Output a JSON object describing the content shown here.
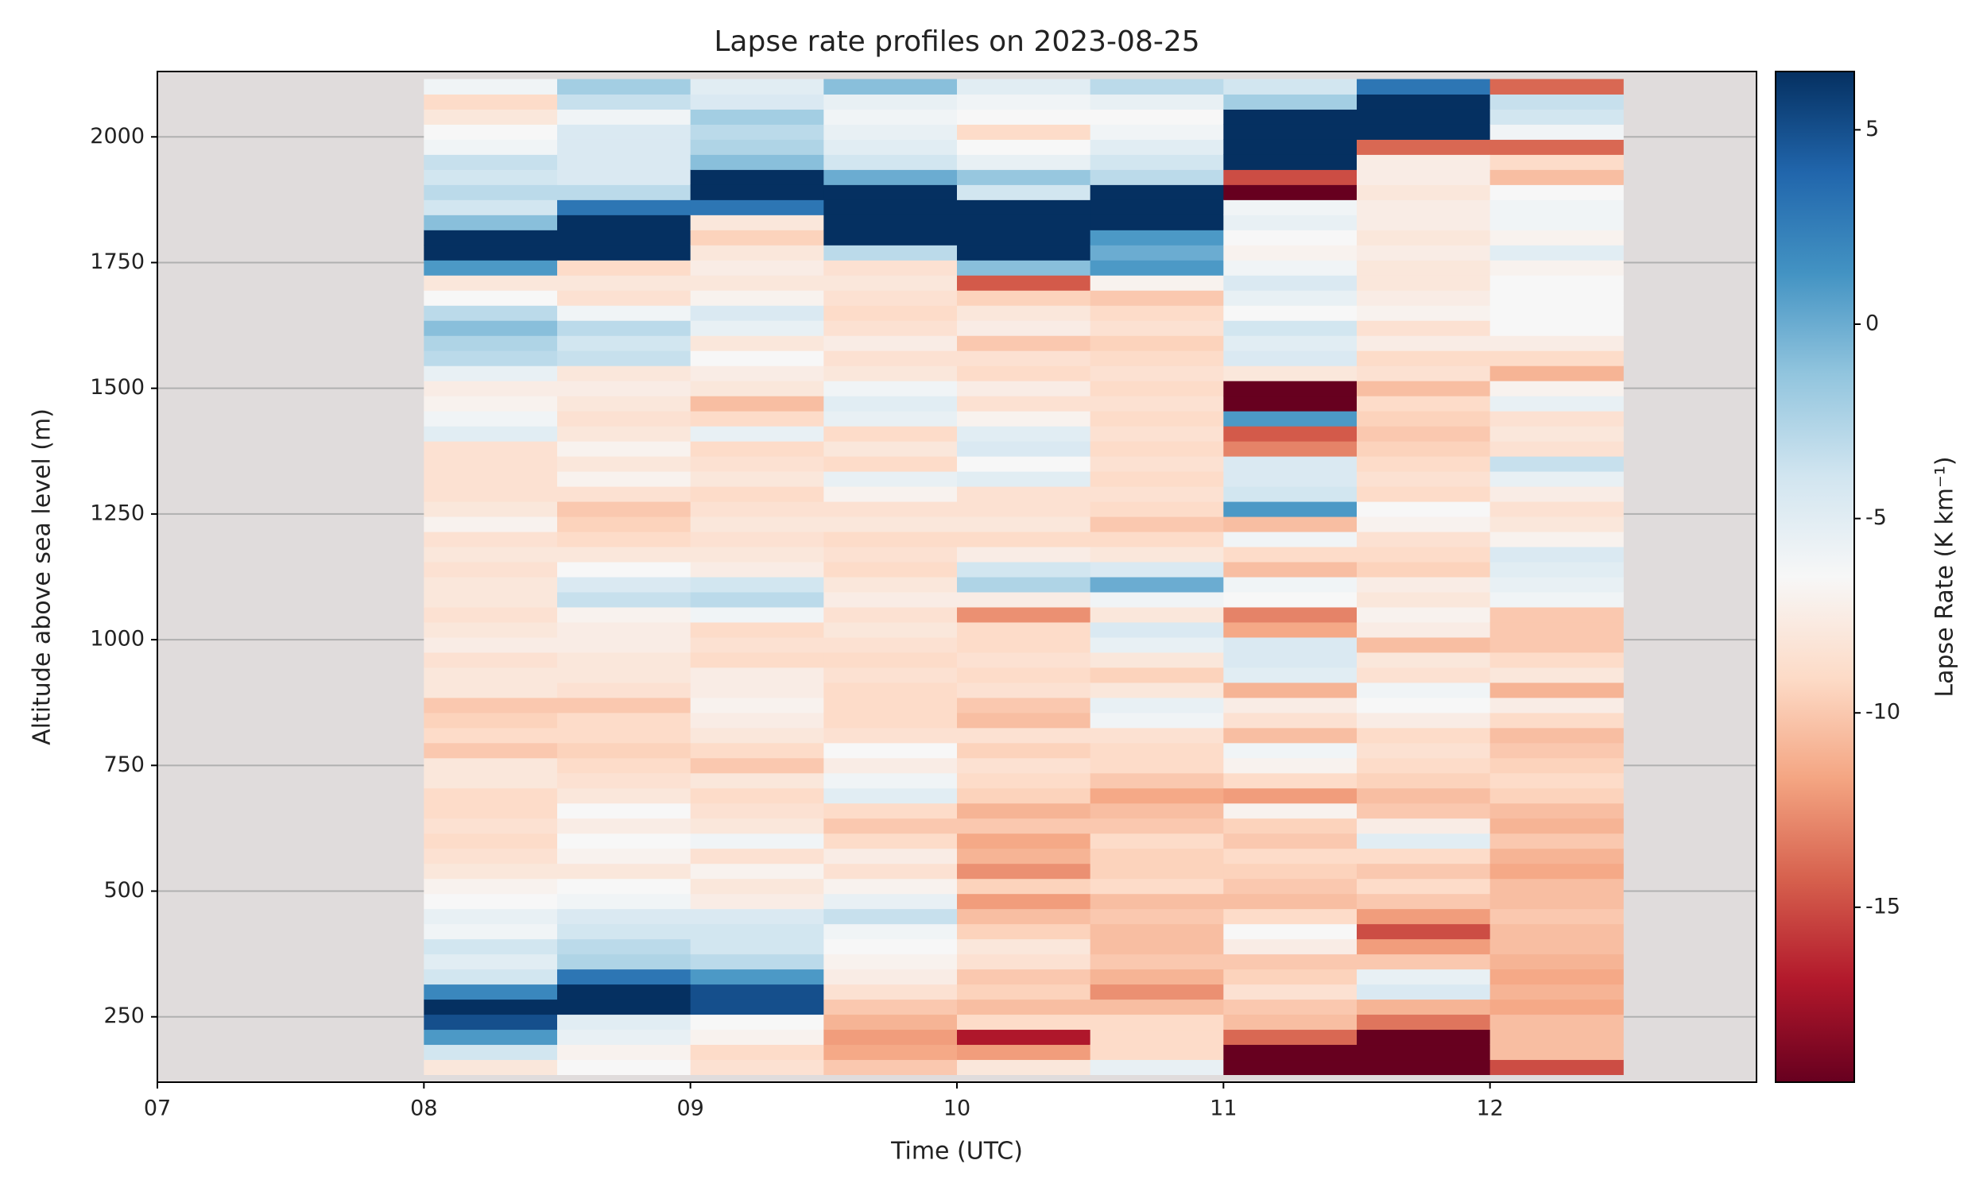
{
  "chart_data": {
    "type": "heatmap",
    "title": "Lapse rate profiles on 2023-08-25",
    "xlabel": "Time (UTC)",
    "ylabel": "Altitude above sea level (m)",
    "colorbar_label": "Lapse Rate (K km⁻¹)",
    "xlim": [
      7,
      13
    ],
    "xticks": [
      {
        "value": 7,
        "label": "07"
      },
      {
        "value": 8,
        "label": "08"
      },
      {
        "value": 9,
        "label": "09"
      },
      {
        "value": 10,
        "label": "10"
      },
      {
        "value": 11,
        "label": "11"
      },
      {
        "value": 12,
        "label": "12"
      }
    ],
    "ylim": [
      120,
      2130
    ],
    "yticks": [
      250,
      500,
      750,
      1000,
      1250,
      1500,
      1750,
      2000
    ],
    "grid": true,
    "clim": [
      -19.5,
      6.5
    ],
    "cticks": [
      -15,
      -10,
      -5,
      0,
      5
    ],
    "colormap": [
      "#67001f",
      "#b2182b",
      "#d6604d",
      "#f4a582",
      "#fddbc7",
      "#f7f7f7",
      "#d1e5f0",
      "#92c5de",
      "#4393c3",
      "#2166ac",
      "#053061"
    ],
    "background": "#e0dcdc",
    "x": [
      8,
      8.5,
      9,
      9.5,
      10,
      10.5,
      11,
      11.5,
      12
    ],
    "y": [
      150,
      180,
      210,
      240,
      270,
      300,
      330,
      360,
      390,
      420,
      450,
      480,
      510,
      540,
      570,
      600,
      630,
      660,
      690,
      720,
      750,
      780,
      810,
      840,
      870,
      900,
      930,
      960,
      990,
      1020,
      1050,
      1080,
      1110,
      1140,
      1170,
      1200,
      1230,
      1260,
      1290,
      1320,
      1350,
      1380,
      1410,
      1440,
      1470,
      1500,
      1530,
      1560,
      1590,
      1620,
      1650,
      1680,
      1710,
      1740,
      1770,
      1800,
      1830,
      1860,
      1890,
      1920,
      1950,
      1980,
      2010,
      2040,
      2070,
      2100
    ],
    "z": [
      [
        -8,
        -4,
        1,
        5,
        7,
        2,
        -4,
        -5,
        -4,
        -6,
        -5.5,
        -6.5,
        -7,
        -8,
        -8.5,
        -9,
        -8.5,
        -9,
        -9,
        -8,
        -8,
        -10,
        -9,
        -9.5,
        -10,
        -8,
        -8,
        -8.5,
        -7.5,
        -8,
        -8.5,
        -8,
        -8,
        -8.5,
        -8,
        -8.5,
        -7,
        -8,
        -8.5,
        -8.5,
        -8.5,
        -8.5,
        -5,
        -6,
        -7,
        -7.5,
        -5.5,
        -3,
        -2.5,
        -1,
        -3,
        -6.5,
        -8,
        1,
        7,
        7,
        -1,
        -4,
        -3,
        -4,
        -3.5,
        -6,
        -6.5,
        -8,
        -9,
        -6
      ],
      [
        -6.5,
        -7,
        -5.5,
        -5,
        7,
        7,
        3,
        -2.5,
        -3,
        -4,
        -4.5,
        -6,
        -6.5,
        -8,
        -7,
        -6.5,
        -7.5,
        -6.5,
        -8,
        -8.5,
        -9,
        -9.5,
        -9,
        -9,
        -10,
        -8.5,
        -8,
        -8,
        -7.5,
        -7.5,
        -7,
        -3.5,
        -4.5,
        -6.5,
        -8,
        -9,
        -9.5,
        -10,
        -8.5,
        -7,
        -8,
        -7,
        -8,
        -8.5,
        -8,
        -7.5,
        -8,
        -3.5,
        -4,
        -3,
        -6,
        -8.5,
        -8,
        -9,
        7,
        7,
        7,
        3,
        -3,
        -4.5,
        -4.5,
        -4.5,
        -4.5,
        -6,
        -3.5,
        -2
      ],
      [
        -8.5,
        -9,
        -7,
        -6.5,
        5,
        5,
        1,
        -3,
        -4,
        -4,
        -4.5,
        -7.5,
        -8,
        -7,
        -8.5,
        -6,
        -8,
        -8.5,
        -9,
        -8,
        -10,
        -9,
        -8,
        -7.5,
        -7,
        -7.5,
        -7.5,
        -9,
        -8.5,
        -9,
        -6,
        -3,
        -4,
        -7.5,
        -8,
        -8.5,
        -8,
        -8.5,
        -9,
        -8,
        -8.5,
        -9,
        -5.5,
        -9,
        -10.5,
        -8,
        -7.5,
        -6.5,
        -8,
        -5.5,
        -4.5,
        -7,
        -8,
        -7.5,
        -8,
        -9.5,
        -8,
        3,
        7,
        7,
        -1,
        -2.5,
        -3,
        -2,
        -4.5,
        -5
      ],
      [
        -10,
        -11.5,
        -12,
        -11,
        -10,
        -8.5,
        -7.5,
        -7,
        -6.5,
        -6,
        -3.5,
        -5.5,
        -7,
        -8.5,
        -7.5,
        -9,
        -10,
        -9,
        -5,
        -6,
        -7.5,
        -6.5,
        -8.5,
        -9,
        -9,
        -9,
        -8.5,
        -9,
        -8.5,
        -8,
        -8.5,
        -7.5,
        -8,
        -9,
        -8.5,
        -9,
        -8,
        -8.5,
        -7,
        -5.5,
        -9,
        -8,
        -9,
        -5.5,
        -5,
        -6,
        -8,
        -8.5,
        -7.5,
        -8.5,
        -9,
        -8.5,
        -8,
        -8.5,
        -3,
        7,
        7,
        7,
        7,
        0,
        -4,
        -5,
        -5.5,
        -6,
        -5.5,
        -1
      ],
      [
        -8,
        -12,
        -17,
        -9,
        -10.5,
        -9.5,
        -10,
        -8.5,
        -8,
        -9.5,
        -10.5,
        -12,
        -9.5,
        -12.5,
        -11,
        -11.5,
        -10,
        -11,
        -9.5,
        -9,
        -8.5,
        -9.5,
        -8.5,
        -10.5,
        -10,
        -8.5,
        -9,
        -8.5,
        -9,
        -9,
        -12.5,
        -7.5,
        -2.5,
        -4,
        -7.5,
        -9,
        -8,
        -8.5,
        -8.5,
        -5,
        -6.5,
        -4.5,
        -5,
        -7,
        -8.5,
        -7.5,
        -9,
        -8.5,
        -10,
        -7.5,
        -8,
        -9.5,
        -14.5,
        -1,
        7,
        7,
        7,
        7,
        -4,
        -1.5,
        -5.5,
        -6.5,
        -9,
        -6.5,
        -6,
        -5
      ],
      [
        -5.5,
        -9,
        -9,
        -9,
        -10.5,
        -12.5,
        -11,
        -10,
        -10.5,
        -10.5,
        -10,
        -10.5,
        -9,
        -9.5,
        -9.5,
        -9,
        -10,
        -10.5,
        -11.5,
        -10,
        -9,
        -9,
        -8.5,
        -6,
        -5.5,
        -8,
        -9.5,
        -8,
        -5.5,
        -4.5,
        -8,
        -6,
        0,
        -4.5,
        -8,
        -9,
        -10,
        -9,
        -8.5,
        -9,
        -8.5,
        -9,
        -8.5,
        -9,
        -8.5,
        -9,
        -8.5,
        -9,
        -9.5,
        -8.5,
        -9,
        -10,
        -7,
        1,
        0,
        1,
        7,
        7,
        7,
        -3,
        -4,
        -5,
        -6,
        -6.5,
        -5.5,
        -3
      ],
      [
        -19.5,
        -19.5,
        -14,
        -10.5,
        -10,
        -8.5,
        -9.5,
        -10,
        -7.5,
        -6.5,
        -9,
        -10.5,
        -10,
        -9.5,
        -9,
        -10,
        -9.5,
        -7,
        -12,
        -9,
        -7,
        -6,
        -10.5,
        -8.5,
        -7.5,
        -11,
        -5,
        -4.5,
        -4.5,
        -11.5,
        -13,
        -6.5,
        -6,
        -10.5,
        -9,
        -6,
        -10.5,
        1,
        -4,
        -4.5,
        -4.5,
        -13,
        -14.5,
        1,
        -19.5,
        -19.5,
        -8,
        -4.5,
        -5,
        -4,
        -6.5,
        -5.5,
        -4.5,
        -6,
        -7,
        -6.5,
        -5.5,
        -6,
        -19.5,
        -15,
        7,
        7,
        7,
        7,
        -2,
        -4
      ],
      [
        -19.5,
        -19.5,
        -19.5,
        -13.5,
        -11,
        -4.5,
        -5.5,
        -10,
        -12,
        -15,
        -12,
        -10,
        -9,
        -10,
        -9,
        -5,
        -7.5,
        -10,
        -10.5,
        -9.5,
        -9,
        -8.5,
        -9,
        -7.5,
        -6.5,
        -6,
        -8.5,
        -8,
        -10.5,
        -7.5,
        -7,
        -8,
        -7.5,
        -9.5,
        -9,
        -8.5,
        -7,
        -6.5,
        -9,
        -8.5,
        -9,
        -9.5,
        -10,
        -9.5,
        -9,
        -10.5,
        -8.5,
        -9,
        -7.5,
        -8.5,
        -7,
        -7.5,
        -8,
        -8,
        -7.5,
        -8,
        -7.5,
        -7.5,
        -8,
        -7.5,
        -7.5,
        -14,
        7,
        7,
        7,
        3
      ],
      [
        -15,
        -10.5,
        -10.5,
        -10.5,
        -11.5,
        -11,
        -11.5,
        -11,
        -10.5,
        -10.5,
        -10,
        -10.5,
        -10.5,
        -11.5,
        -11,
        -10,
        -11,
        -10.5,
        -9.5,
        -9,
        -9.5,
        -10,
        -10.5,
        -9,
        -7.5,
        -11,
        -8,
        -9,
        -10,
        -10,
        -10,
        -6,
        -5.5,
        -5,
        -4.5,
        -7,
        -8,
        -8.5,
        -7.5,
        -5.5,
        -3.5,
        -8.5,
        -8,
        -8.5,
        -5.5,
        -7,
        -11,
        -9,
        -7.5,
        -6.5,
        -6.5,
        -6.5,
        -6.5,
        -7,
        -5,
        -7,
        -6,
        -6,
        -6.5,
        -10.5,
        -9,
        -14,
        -6,
        -4,
        -3.5,
        -14
      ]
    ]
  }
}
